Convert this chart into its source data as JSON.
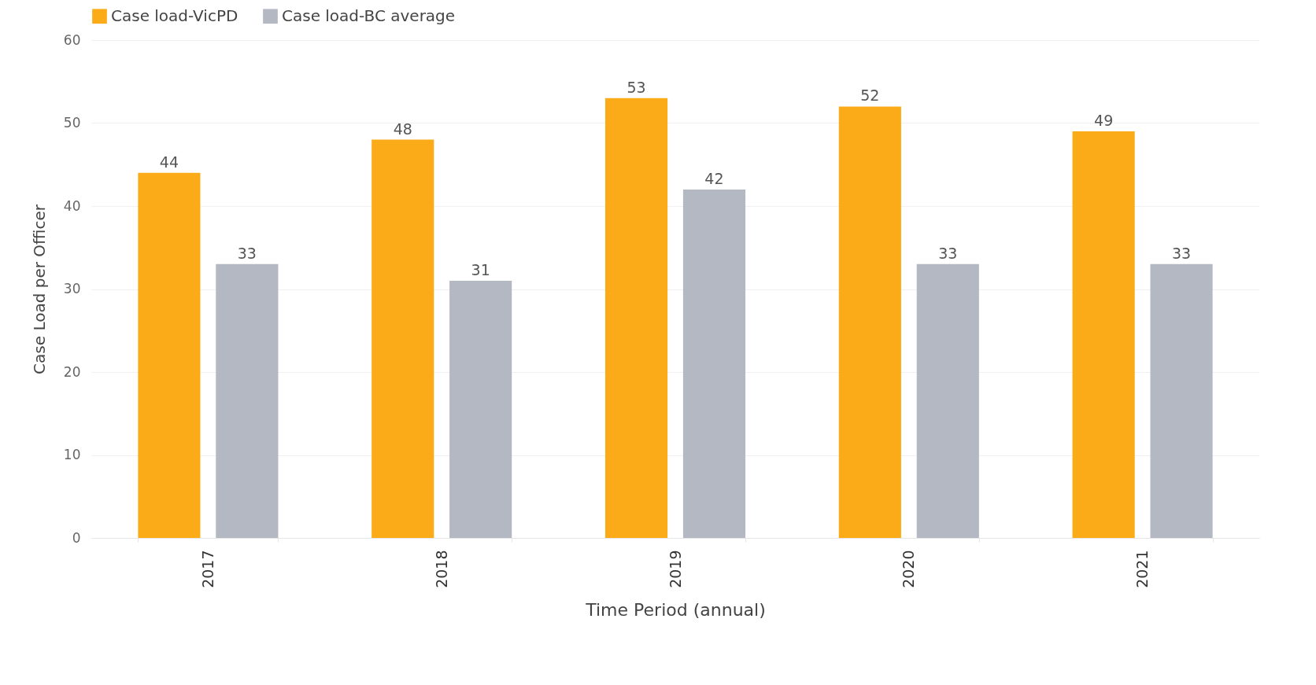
{
  "chart_data": {
    "type": "bar",
    "xlabel": "Time Period (annual)",
    "ylabel": "Case Load per Officer",
    "categories": [
      "2017",
      "2018",
      "2019",
      "2020",
      "2021"
    ],
    "series": [
      {
        "name": "Case load-VicPD",
        "color": "#fbab18",
        "values": [
          44,
          48,
          53,
          52,
          49
        ]
      },
      {
        "name": "Case load-BC average",
        "color": "#b3b8c3",
        "values": [
          33,
          31,
          42,
          33,
          33
        ]
      }
    ],
    "ylim": [
      0,
      60
    ],
    "yticks": [
      0,
      10,
      20,
      30,
      40,
      50,
      60
    ],
    "grid": "y",
    "legend": "top",
    "data_labels": true
  }
}
